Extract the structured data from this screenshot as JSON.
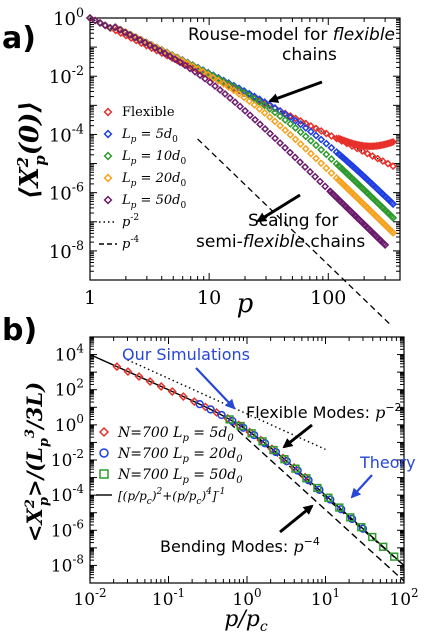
{
  "chart_data": [
    {
      "panel_label": "a)",
      "type": "scatter",
      "xscale": "log",
      "yscale": "log",
      "xlim": [
        1,
        400
      ],
      "ylim": [
        1e-09,
        1
      ],
      "xlabel": "p",
      "ylabel": "⟨X²p(0)⟩",
      "xticks": [
        {
          "value": 1,
          "label": "1"
        },
        {
          "value": 10,
          "label": "10"
        },
        {
          "value": 100,
          "label": "100"
        }
      ],
      "yticks": [
        {
          "value": 1,
          "base": "10",
          "exp": "0"
        },
        {
          "value": 0.01,
          "base": "10",
          "exp": "-2"
        },
        {
          "value": 0.0001,
          "base": "10",
          "exp": "-4"
        },
        {
          "value": 1e-06,
          "base": "10",
          "exp": "-6"
        },
        {
          "value": 1e-08,
          "base": "10",
          "exp": "-8"
        }
      ],
      "series": [
        {
          "name": "Flexible",
          "color": "#e8302a",
          "marker": "diamond",
          "start": 1.0,
          "slope_low": -2,
          "crossover": 1000,
          "slope_high": -2,
          "p_max": 350,
          "pts": 26
        },
        {
          "name": "Lp = 5d0",
          "color": "#1f3fe0",
          "marker": "diamond",
          "start": 1.0,
          "slope_low": -2,
          "crossover": 70,
          "slope_high": -4,
          "p_max": 350,
          "pts": 26
        },
        {
          "name": "Lp = 10d0",
          "color": "#2e9a2e",
          "marker": "diamond",
          "start": 1.0,
          "slope_low": -2,
          "crossover": 40,
          "slope_high": -4,
          "p_max": 350,
          "pts": 26
        },
        {
          "name": "Lp = 20d0",
          "color": "#f5a21f",
          "marker": "diamond",
          "start": 1.0,
          "slope_low": -2,
          "crossover": 22,
          "slope_high": -4,
          "p_max": 350,
          "pts": 26
        },
        {
          "name": "Lp = 50d0",
          "color": "#6b1a6b",
          "marker": "diamond",
          "start": 1.0,
          "slope_low": -2,
          "crossover": 10,
          "slope_high": -4,
          "p_max": 300,
          "pts": 26
        }
      ],
      "reference_lines": [
        {
          "name": "p-2",
          "style": "dotted",
          "points": [
            [
              1,
              1.0
            ],
            [
              300,
              1.1e-05
            ]
          ]
        },
        {
          "name": "p-4",
          "style": "dashed",
          "points": [
            [
              8,
              7e-05
            ],
            [
              330,
              3e-11
            ]
          ]
        }
      ],
      "legend": [
        {
          "text": "Flexible",
          "color": "#e8302a",
          "marker": "diamond"
        },
        {
          "text": "Lp = 5d0",
          "main": "L",
          "sub": "p",
          "rest": " = 5d",
          "sub2": "0",
          "color": "#1f3fe0",
          "marker": "diamond"
        },
        {
          "text": "Lp = 10d0",
          "main": "L",
          "sub": "p",
          "rest": " = 10d",
          "sub2": "0",
          "color": "#2e9a2e",
          "marker": "diamond"
        },
        {
          "text": "Lp = 20d0",
          "main": "L",
          "sub": "p",
          "rest": " = 20d",
          "sub2": "0",
          "color": "#f5a21f",
          "marker": "diamond"
        },
        {
          "text": "Lp = 50d0",
          "main": "L",
          "sub": "p",
          "rest": " = 50d",
          "sub2": "0",
          "color": "#6b1a6b",
          "marker": "diamond"
        },
        {
          "text": "p-2",
          "main": "p",
          "sup": "-2",
          "style": "dotted"
        },
        {
          "text": "p-4",
          "main": "p",
          "sup": "-4",
          "style": "dashed"
        }
      ],
      "annotations": [
        {
          "id": "rouse",
          "line1": "Rouse-model for ",
          "line1_em": "flexible",
          "line2": "chains"
        },
        {
          "id": "scaling",
          "line1": "Scaling for",
          "line2a": "semi-",
          "line2_em": "flexible",
          "line2b": " chains"
        }
      ]
    },
    {
      "panel_label": "b)",
      "type": "scatter",
      "xscale": "log",
      "yscale": "log",
      "xlim": [
        0.01,
        100
      ],
      "ylim": [
        1e-09,
        100000.0
      ],
      "xlabel": "p/pc",
      "ylabel": "<X²p>/(Lp³/3L)",
      "xticks": [
        {
          "value": 0.01,
          "base": "10",
          "exp": "-2"
        },
        {
          "value": 0.1,
          "base": "10",
          "exp": "-1"
        },
        {
          "value": 1,
          "base": "10",
          "exp": "0"
        },
        {
          "value": 10,
          "base": "10",
          "exp": "1"
        },
        {
          "value": 100,
          "base": "10",
          "exp": "2"
        }
      ],
      "yticks": [
        {
          "value": 10000,
          "base": "10",
          "exp": "4"
        },
        {
          "value": 100,
          "base": "10",
          "exp": "2"
        },
        {
          "value": 1,
          "base": "10",
          "exp": "0"
        },
        {
          "value": 0.01,
          "base": "10",
          "exp": "-2"
        },
        {
          "value": 0.0001,
          "base": "10",
          "exp": "-4"
        },
        {
          "value": 1e-06,
          "base": "10",
          "exp": "-6"
        },
        {
          "value": 1e-08,
          "base": "10",
          "exp": "-8"
        }
      ],
      "series": [
        {
          "name": "N=700 Lp = 5d0",
          "color": "#e8302a",
          "marker": "diamond",
          "x_min": 0.022,
          "x_max": 5.5,
          "pts": 18
        },
        {
          "name": "N=700 Lp = 20d0",
          "color": "#1f3fe0",
          "marker": "circle",
          "x_min": 0.25,
          "x_max": 30,
          "pts": 16
        },
        {
          "name": "N=700 Lp = 50d0",
          "color": "#2e9a2e",
          "marker": "square",
          "x_min": 0.6,
          "x_max": 75,
          "pts": 16
        }
      ],
      "theory_curve": {
        "formula": "[(p/pc)^2+(p/pc)^4]^-1",
        "x_min": 0.01,
        "x_max": 100
      },
      "reference_lines": [
        {
          "name": "Flexible Modes p-2",
          "style": "dotted",
          "points": [
            [
              0.03,
              5000
            ],
            [
              10,
              0.04
            ]
          ]
        },
        {
          "name": "Bending Modes p-4 (1)",
          "style": "dashed",
          "points": [
            [
              0.8,
              1.3
            ],
            [
              100,
              1e-08
            ]
          ]
        },
        {
          "name": "Bending Modes p-4 (2)",
          "style": "dashed",
          "points": [
            [
              0.6,
              1.3
            ],
            [
              100,
              1.3e-09
            ]
          ]
        }
      ],
      "legend": [
        {
          "text": "N=700 Lp = 5d0",
          "prefix": "N=700 ",
          "main": "L",
          "sub": "p",
          "rest": " = 5d",
          "sub2": "0",
          "color": "#e8302a",
          "marker": "diamond"
        },
        {
          "text": "N=700 Lp = 20d0",
          "prefix": "N=700 ",
          "main": "L",
          "sub": "p",
          "rest": " = 20d",
          "sub2": "0",
          "color": "#1f3fe0",
          "marker": "circle"
        },
        {
          "text": "N=700 Lp = 50d0",
          "prefix": "N=700 ",
          "main": "L",
          "sub": "p",
          "rest": " = 50d",
          "sub2": "0",
          "color": "#2e9a2e",
          "marker": "square"
        },
        {
          "text": "[(p/pc)2+(p/pc)4]-1",
          "style": "solid"
        }
      ],
      "annotations": [
        {
          "id": "our-sim",
          "text": "Our Simulations",
          "color": "#2747d6"
        },
        {
          "id": "flex-modes",
          "text": "Flexible Modes: ",
          "math": "p",
          "sup": "−2"
        },
        {
          "id": "theory",
          "text": "Theory",
          "color": "#2747d6"
        },
        {
          "id": "bending-modes",
          "text": "Bending Modes: ",
          "math": "p",
          "sup": "−4"
        }
      ]
    }
  ]
}
